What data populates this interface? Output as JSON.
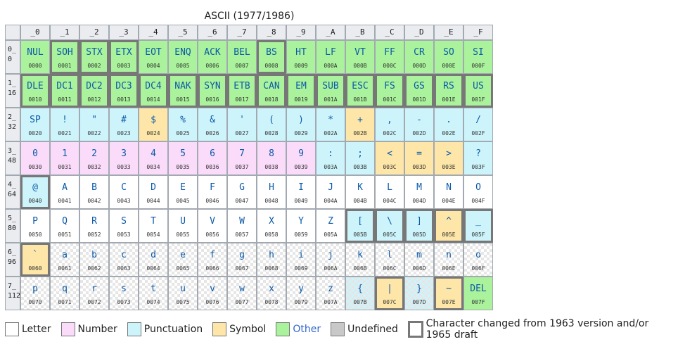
{
  "caption": "ASCII (1977/1986)",
  "columns": [
    "_0",
    "_1",
    "_2",
    "_3",
    "_4",
    "_5",
    "_6",
    "_7",
    "_8",
    "_9",
    "_A",
    "_B",
    "_C",
    "_D",
    "_E",
    "_F"
  ],
  "rows": [
    {
      "head": [
        "0_",
        "0"
      ],
      "cells": [
        [
          "NUL",
          "0000",
          4,
          false,
          false
        ],
        [
          "SOH",
          "0001",
          4,
          true,
          false
        ],
        [
          "STX",
          "0002",
          4,
          true,
          false
        ],
        [
          "ETX",
          "0003",
          4,
          true,
          false
        ],
        [
          "EOT",
          "0004",
          4,
          false,
          false
        ],
        [
          "ENQ",
          "0005",
          4,
          false,
          false
        ],
        [
          "ACK",
          "0006",
          4,
          false,
          false
        ],
        [
          "BEL",
          "0007",
          4,
          false,
          false
        ],
        [
          "BS",
          "0008",
          4,
          true,
          false
        ],
        [
          "HT",
          "0009",
          4,
          false,
          false
        ],
        [
          "LF",
          "000A",
          4,
          false,
          false
        ],
        [
          "VT",
          "000B",
          4,
          false,
          false
        ],
        [
          "FF",
          "000C",
          4,
          false,
          false
        ],
        [
          "CR",
          "000D",
          4,
          false,
          false
        ],
        [
          "SO",
          "000E",
          4,
          false,
          false
        ],
        [
          "SI",
          "000F",
          4,
          false,
          false
        ]
      ]
    },
    {
      "head": [
        "1_",
        "16"
      ],
      "cells": [
        [
          "DLE",
          "0010",
          4,
          true,
          false
        ],
        [
          "DC1",
          "0011",
          4,
          true,
          false
        ],
        [
          "DC2",
          "0012",
          4,
          true,
          false
        ],
        [
          "DC3",
          "0013",
          4,
          true,
          false
        ],
        [
          "DC4",
          "0014",
          4,
          true,
          false
        ],
        [
          "NAK",
          "0015",
          4,
          true,
          false
        ],
        [
          "SYN",
          "0016",
          4,
          true,
          false
        ],
        [
          "ETB",
          "0017",
          4,
          true,
          false
        ],
        [
          "CAN",
          "0018",
          4,
          true,
          false
        ],
        [
          "EM",
          "0019",
          4,
          true,
          false
        ],
        [
          "SUB",
          "001A",
          4,
          true,
          false
        ],
        [
          "ESC",
          "001B",
          4,
          true,
          false
        ],
        [
          "FS",
          "001C",
          4,
          true,
          false
        ],
        [
          "GS",
          "001D",
          4,
          true,
          false
        ],
        [
          "RS",
          "001E",
          4,
          true,
          false
        ],
        [
          "US",
          "001F",
          4,
          true,
          false
        ]
      ]
    },
    {
      "head": [
        "2_",
        "32"
      ],
      "cells": [
        [
          "SP",
          "0020",
          2,
          false,
          false
        ],
        [
          "!",
          "0021",
          2,
          false,
          false
        ],
        [
          "\"",
          "0022",
          2,
          false,
          false
        ],
        [
          "#",
          "0023",
          2,
          false,
          false
        ],
        [
          "$",
          "0024",
          3,
          false,
          false
        ],
        [
          "%",
          "0025",
          2,
          false,
          false
        ],
        [
          "&",
          "0026",
          2,
          false,
          false
        ],
        [
          "'",
          "0027",
          2,
          false,
          false
        ],
        [
          "(",
          "0028",
          2,
          false,
          false
        ],
        [
          ")",
          "0029",
          2,
          false,
          false
        ],
        [
          "*",
          "002A",
          2,
          false,
          false
        ],
        [
          "+",
          "002B",
          3,
          false,
          false
        ],
        [
          ",",
          "002C",
          2,
          false,
          false
        ],
        [
          "-",
          "002D",
          2,
          false,
          false
        ],
        [
          ".",
          "002E",
          2,
          false,
          false
        ],
        [
          "/",
          "002F",
          2,
          false,
          false
        ]
      ]
    },
    {
      "head": [
        "3_",
        "48"
      ],
      "cells": [
        [
          "0",
          "0030",
          1,
          false,
          false
        ],
        [
          "1",
          "0031",
          1,
          false,
          false
        ],
        [
          "2",
          "0032",
          1,
          false,
          false
        ],
        [
          "3",
          "0033",
          1,
          false,
          false
        ],
        [
          "4",
          "0034",
          1,
          false,
          false
        ],
        [
          "5",
          "0035",
          1,
          false,
          false
        ],
        [
          "6",
          "0036",
          1,
          false,
          false
        ],
        [
          "7",
          "0037",
          1,
          false,
          false
        ],
        [
          "8",
          "0038",
          1,
          false,
          false
        ],
        [
          "9",
          "0039",
          1,
          false,
          false
        ],
        [
          ":",
          "003A",
          2,
          false,
          false
        ],
        [
          ";",
          "003B",
          2,
          false,
          false
        ],
        [
          "<",
          "003C",
          3,
          false,
          false
        ],
        [
          "=",
          "003D",
          3,
          false,
          false
        ],
        [
          ">",
          "003E",
          3,
          false,
          false
        ],
        [
          "?",
          "003F",
          2,
          false,
          false
        ]
      ]
    },
    {
      "head": [
        "4_",
        "64"
      ],
      "cells": [
        [
          "@",
          "0040",
          2,
          true,
          false
        ],
        [
          "A",
          "0041",
          0,
          false,
          false
        ],
        [
          "B",
          "0042",
          0,
          false,
          false
        ],
        [
          "C",
          "0043",
          0,
          false,
          false
        ],
        [
          "D",
          "0044",
          0,
          false,
          false
        ],
        [
          "E",
          "0045",
          0,
          false,
          false
        ],
        [
          "F",
          "0046",
          0,
          false,
          false
        ],
        [
          "G",
          "0047",
          0,
          false,
          false
        ],
        [
          "H",
          "0048",
          0,
          false,
          false
        ],
        [
          "I",
          "0049",
          0,
          false,
          false
        ],
        [
          "J",
          "004A",
          0,
          false,
          false
        ],
        [
          "K",
          "004B",
          0,
          false,
          false
        ],
        [
          "L",
          "004C",
          0,
          false,
          false
        ],
        [
          "M",
          "004D",
          0,
          false,
          false
        ],
        [
          "N",
          "004E",
          0,
          false,
          false
        ],
        [
          "O",
          "004F",
          0,
          false,
          false
        ]
      ]
    },
    {
      "head": [
        "5_",
        "80"
      ],
      "cells": [
        [
          "P",
          "0050",
          0,
          false,
          false
        ],
        [
          "Q",
          "0051",
          0,
          false,
          false
        ],
        [
          "R",
          "0052",
          0,
          false,
          false
        ],
        [
          "S",
          "0053",
          0,
          false,
          false
        ],
        [
          "T",
          "0054",
          0,
          false,
          false
        ],
        [
          "U",
          "0055",
          0,
          false,
          false
        ],
        [
          "V",
          "0056",
          0,
          false,
          false
        ],
        [
          "W",
          "0057",
          0,
          false,
          false
        ],
        [
          "X",
          "0058",
          0,
          false,
          false
        ],
        [
          "Y",
          "0059",
          0,
          false,
          false
        ],
        [
          "Z",
          "005A",
          0,
          false,
          false
        ],
        [
          "[",
          "005B",
          2,
          true,
          false
        ],
        [
          "\\",
          "005C",
          2,
          true,
          false
        ],
        [
          "]",
          "005D",
          2,
          true,
          false
        ],
        [
          "^",
          "005E",
          3,
          true,
          false
        ],
        [
          "_",
          "005F",
          2,
          true,
          false
        ]
      ]
    },
    {
      "head": [
        "6_",
        "96"
      ],
      "cells": [
        [
          "`",
          "0060",
          3,
          true,
          false
        ],
        [
          "a",
          "0061",
          0,
          false,
          true
        ],
        [
          "b",
          "0062",
          0,
          false,
          true
        ],
        [
          "c",
          "0063",
          0,
          false,
          true
        ],
        [
          "d",
          "0064",
          0,
          false,
          true
        ],
        [
          "e",
          "0065",
          0,
          false,
          true
        ],
        [
          "f",
          "0066",
          0,
          false,
          true
        ],
        [
          "g",
          "0067",
          0,
          false,
          true
        ],
        [
          "h",
          "0068",
          0,
          false,
          true
        ],
        [
          "i",
          "0069",
          0,
          false,
          true
        ],
        [
          "j",
          "006A",
          0,
          false,
          true
        ],
        [
          "k",
          "006B",
          0,
          false,
          true
        ],
        [
          "l",
          "006C",
          0,
          false,
          true
        ],
        [
          "m",
          "006D",
          0,
          false,
          true
        ],
        [
          "n",
          "006E",
          0,
          false,
          true
        ],
        [
          "o",
          "006F",
          0,
          false,
          true
        ]
      ]
    },
    {
      "head": [
        "7_",
        "112"
      ],
      "cells": [
        [
          "p",
          "0070",
          0,
          false,
          true
        ],
        [
          "q",
          "0071",
          0,
          false,
          true
        ],
        [
          "r",
          "0072",
          0,
          false,
          true
        ],
        [
          "s",
          "0073",
          0,
          false,
          true
        ],
        [
          "t",
          "0074",
          0,
          false,
          true
        ],
        [
          "u",
          "0075",
          0,
          false,
          true
        ],
        [
          "v",
          "0076",
          0,
          false,
          true
        ],
        [
          "w",
          "0077",
          0,
          false,
          true
        ],
        [
          "x",
          "0078",
          0,
          false,
          true
        ],
        [
          "y",
          "0079",
          0,
          false,
          true
        ],
        [
          "z",
          "007A",
          0,
          false,
          true
        ],
        [
          "{",
          "007B",
          2,
          false,
          true
        ],
        [
          "|",
          "007C",
          3,
          true,
          false
        ],
        [
          "}",
          "007D",
          2,
          false,
          true
        ],
        [
          "~",
          "007E",
          3,
          true,
          false
        ],
        [
          "DEL",
          "007F",
          4,
          false,
          false
        ]
      ]
    }
  ],
  "legend": [
    {
      "label": "Letter",
      "color": "#ffffff"
    },
    {
      "label": "Number",
      "color": "#fadcfa"
    },
    {
      "label": "Punctuation",
      "color": "#cdf4fb"
    },
    {
      "label": "Symbol",
      "color": "#fde6a8"
    },
    {
      "label": "Other",
      "color": "#aaf29c",
      "link": true
    },
    {
      "label": "Undefined",
      "color": "#c8c8c8"
    },
    {
      "label": "Character changed from 1963 version and/or 1965 draft",
      "color": "#ffffff",
      "changed": true
    }
  ]
}
